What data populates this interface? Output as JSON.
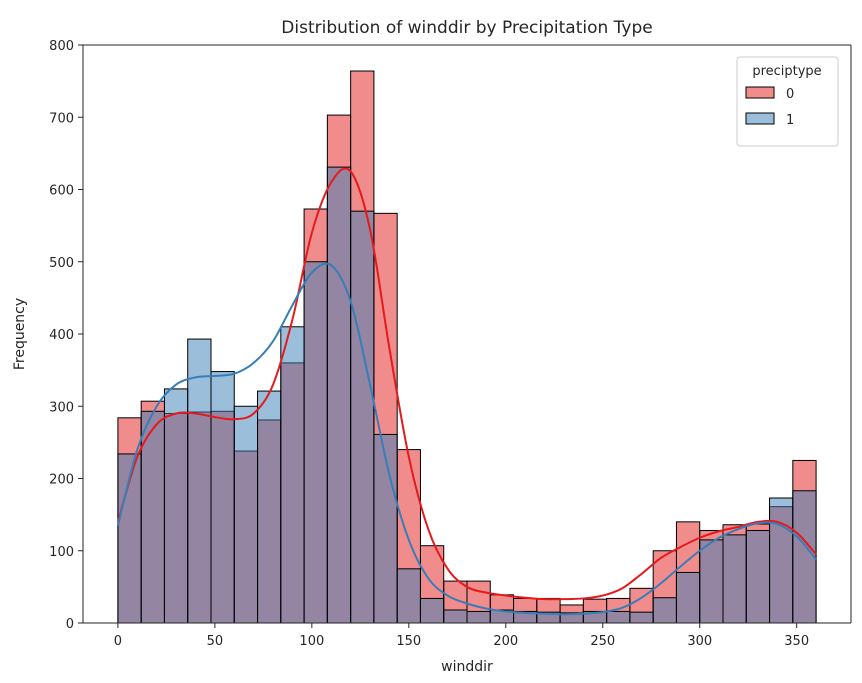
{
  "chart_data": {
    "type": "histogram",
    "title": "Distribution of winddir by Precipitation Type",
    "xlabel": "winddir",
    "ylabel": "Frequency",
    "xlim": [
      -18,
      378
    ],
    "ylim": [
      0,
      800
    ],
    "xticks": [
      0,
      50,
      100,
      150,
      200,
      250,
      300,
      350
    ],
    "yticks": [
      0,
      100,
      200,
      300,
      400,
      500,
      600,
      700,
      800
    ],
    "bin_edges": [
      0,
      12,
      24,
      36,
      48,
      60,
      72,
      84,
      96,
      108,
      120,
      132,
      144,
      156,
      168,
      180,
      192,
      204,
      216,
      228,
      240,
      252,
      264,
      276,
      288,
      300,
      312,
      324,
      336,
      348,
      360
    ],
    "legend": {
      "title": "preciptype",
      "position": "top-right"
    },
    "series": [
      {
        "name": "0",
        "color": "#e41a1c",
        "counts": [
          284,
          307,
          290,
          292,
          293,
          238,
          281,
          360,
          573,
          703,
          764,
          567,
          240,
          107,
          58,
          58,
          39,
          34,
          34,
          25,
          33,
          34,
          48,
          100,
          140,
          128,
          136,
          137,
          161,
          225
        ],
        "kde_x": [
          0,
          10,
          20,
          30,
          40,
          50,
          60,
          70,
          80,
          90,
          100,
          110,
          120,
          130,
          140,
          150,
          160,
          170,
          180,
          190,
          200,
          210,
          220,
          230,
          240,
          250,
          260,
          270,
          280,
          290,
          300,
          310,
          320,
          330,
          340,
          350,
          360
        ],
        "kde_y": [
          140,
          230,
          275,
          290,
          290,
          285,
          282,
          290,
          330,
          420,
          540,
          610,
          625,
          545,
          380,
          230,
          130,
          75,
          50,
          42,
          38,
          35,
          33,
          33,
          34,
          38,
          48,
          68,
          90,
          105,
          118,
          127,
          133,
          140,
          140,
          125,
          95
        ]
      },
      {
        "name": "1",
        "color": "#377eb8",
        "counts": [
          234,
          293,
          324,
          393,
          348,
          300,
          321,
          410,
          500,
          631,
          570,
          261,
          75,
          34,
          18,
          16,
          18,
          16,
          15,
          14,
          16,
          16,
          15,
          35,
          70,
          115,
          122,
          128,
          173,
          183
        ],
        "kde_x": [
          0,
          10,
          20,
          30,
          40,
          50,
          60,
          70,
          80,
          90,
          100,
          110,
          120,
          130,
          140,
          150,
          160,
          170,
          180,
          190,
          200,
          210,
          220,
          230,
          240,
          250,
          260,
          270,
          280,
          290,
          300,
          310,
          320,
          330,
          340,
          350,
          360
        ],
        "kde_y": [
          135,
          240,
          300,
          330,
          340,
          342,
          345,
          360,
          390,
          440,
          485,
          495,
          445,
          330,
          205,
          115,
          62,
          38,
          27,
          20,
          16,
          14,
          13,
          12,
          13,
          15,
          21,
          35,
          55,
          78,
          100,
          118,
          130,
          138,
          137,
          120,
          88
        ]
      }
    ]
  }
}
